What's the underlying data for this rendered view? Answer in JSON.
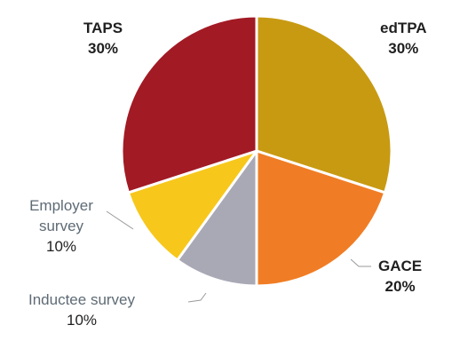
{
  "chart_data": {
    "type": "pie",
    "slices": [
      {
        "label": "edTPA",
        "value": 30,
        "value_label": "30%",
        "color": "#c89a12"
      },
      {
        "label": "GACE",
        "value": 20,
        "value_label": "20%",
        "color": "#f07d25"
      },
      {
        "label": "Inductee survey",
        "value": 10,
        "value_label": "10%",
        "color": "#a9a9b6"
      },
      {
        "label": "Employer survey",
        "value": 10,
        "value_label": "10%",
        "color": "#f7c71c"
      },
      {
        "label": "TAPS",
        "value": 30,
        "value_label": "30%",
        "color": "#a21a24"
      }
    ],
    "legend": "none"
  }
}
